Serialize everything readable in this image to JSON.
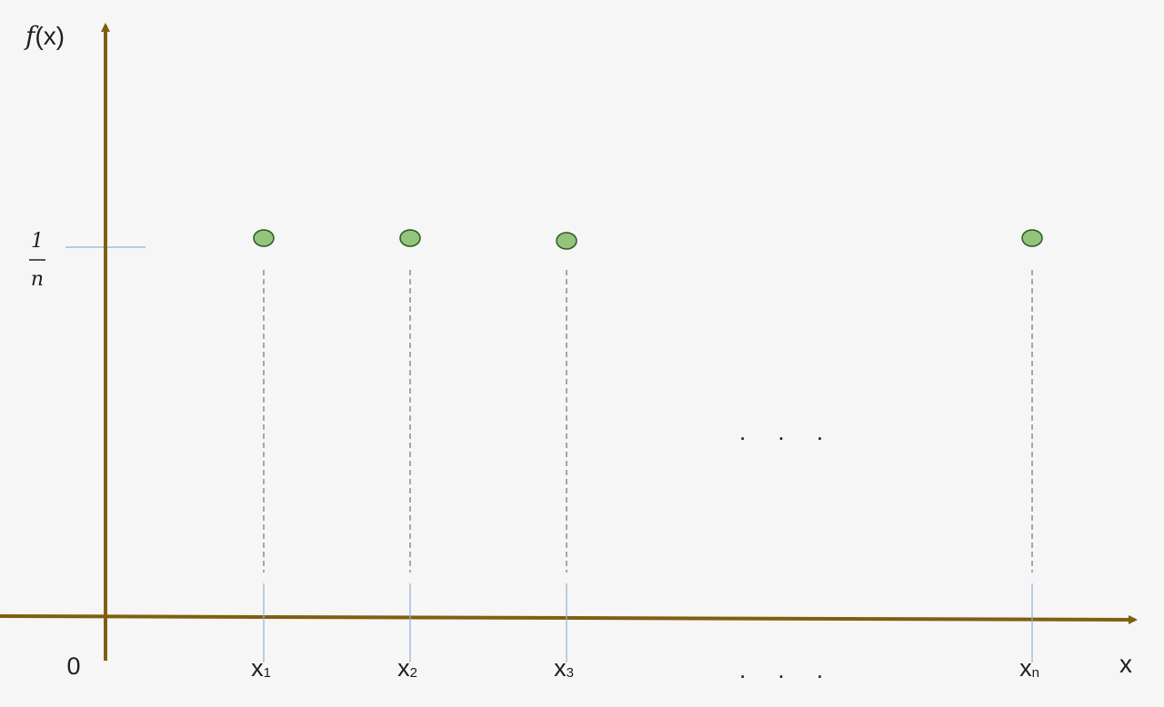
{
  "chart_data": {
    "type": "scatter",
    "title": "",
    "ylabel": "f(x)",
    "ylabel_func": "f",
    "ylabel_arg": "(x)",
    "xlabel": "x",
    "origin_label": "0",
    "y_tick": {
      "numerator": "1",
      "denominator": "n"
    },
    "ellipsis": ". . .",
    "points": [
      {
        "label": "x",
        "subscript": "1",
        "y": "1/n"
      },
      {
        "label": "x",
        "subscript": "2",
        "y": "1/n"
      },
      {
        "label": "x",
        "subscript": "3",
        "y": "1/n"
      },
      {
        "label": "x",
        "subscript": "n",
        "y": "1/n"
      }
    ],
    "grid": false,
    "legend": "none"
  },
  "colors": {
    "axis": "#7f6010",
    "tick": "#8ab4d8",
    "point_fill": "#93c47d",
    "point_stroke": "#2d5a1b",
    "dashed": "#555555",
    "text": "#1e1e1e",
    "background": "#f6f6f6"
  }
}
